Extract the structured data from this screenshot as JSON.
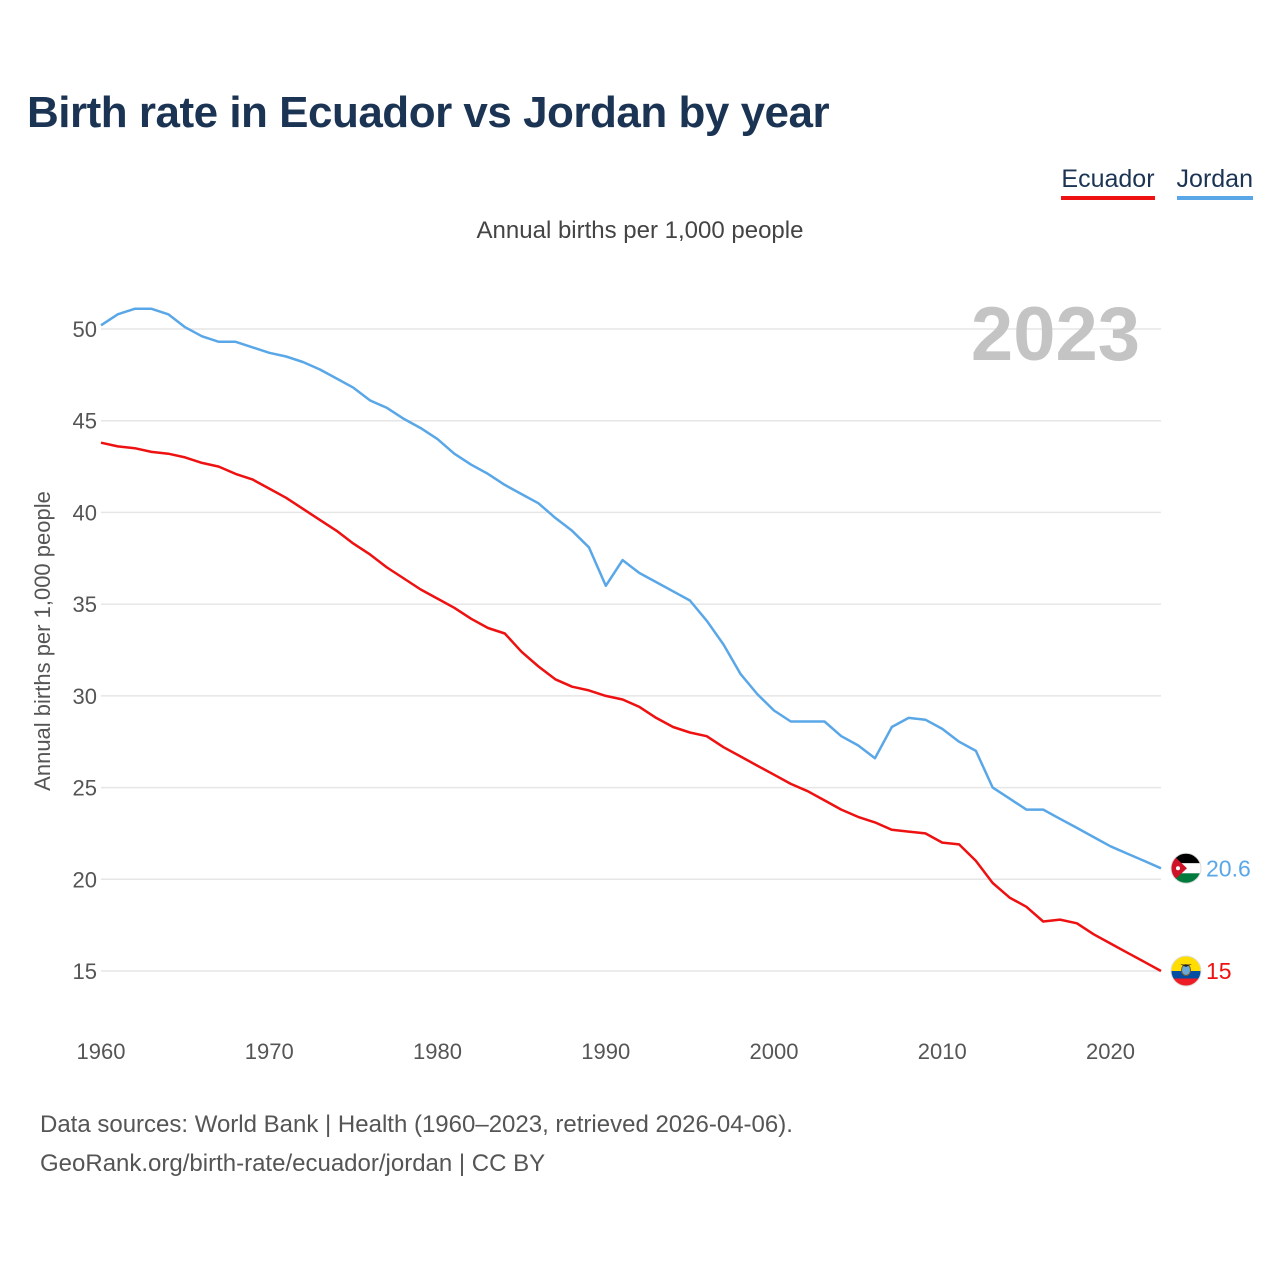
{
  "title": "Birth rate in Ecuador vs Jordan by year",
  "subtitle": "Annual births per 1,000 people",
  "legend": [
    {
      "label": "Ecuador",
      "color": "#ee1111"
    },
    {
      "label": "Jordan",
      "color": "#5aa7e8"
    }
  ],
  "source": {
    "line1": "Data sources: World Bank | Health (1960–2023, retrieved 2026-04-06).",
    "line2": "GeoRank.org/birth-rate/ecuador/jordan | CC BY"
  },
  "chart_data": {
    "type": "line",
    "title": "Birth rate in Ecuador vs Jordan by year",
    "ylabel": "Annual births per 1,000 people",
    "xlabel": "",
    "year_label": "2023",
    "xlim": [
      1960,
      2023
    ],
    "ylim": [
      15,
      50
    ],
    "x_ticks": [
      1960,
      1970,
      1980,
      1990,
      2000,
      2010,
      2020
    ],
    "y_ticks": [
      15,
      20,
      25,
      30,
      35,
      40,
      45,
      50
    ],
    "grid": true,
    "x": [
      1960,
      1961,
      1962,
      1963,
      1964,
      1965,
      1966,
      1967,
      1968,
      1969,
      1970,
      1971,
      1972,
      1973,
      1974,
      1975,
      1976,
      1977,
      1978,
      1979,
      1980,
      1981,
      1982,
      1983,
      1984,
      1985,
      1986,
      1987,
      1988,
      1989,
      1990,
      1991,
      1992,
      1993,
      1994,
      1995,
      1996,
      1997,
      1998,
      1999,
      2000,
      2001,
      2002,
      2003,
      2004,
      2005,
      2006,
      2007,
      2008,
      2009,
      2010,
      2011,
      2012,
      2013,
      2014,
      2015,
      2016,
      2017,
      2018,
      2019,
      2020,
      2021,
      2022,
      2023
    ],
    "series": [
      {
        "name": "Ecuador",
        "color": "#ee1111",
        "end_label": "15",
        "flag": "ecuador-flag-icon",
        "values": [
          43.8,
          43.6,
          43.5,
          43.3,
          43.2,
          43.0,
          42.7,
          42.5,
          42.1,
          41.8,
          41.3,
          40.8,
          40.2,
          39.6,
          39.0,
          38.3,
          37.7,
          37.0,
          36.4,
          35.8,
          35.3,
          34.8,
          34.2,
          33.7,
          33.4,
          32.4,
          31.6,
          30.9,
          30.5,
          30.3,
          30.0,
          29.8,
          29.4,
          28.8,
          28.3,
          28.0,
          27.8,
          27.2,
          26.7,
          26.2,
          25.7,
          25.2,
          24.8,
          24.3,
          23.8,
          23.4,
          23.1,
          22.7,
          22.6,
          22.5,
          22.0,
          21.9,
          21.0,
          19.8,
          19.0,
          18.5,
          17.7,
          17.8,
          17.6,
          17.0,
          16.5,
          16.0,
          15.5,
          15.0
        ]
      },
      {
        "name": "Jordan",
        "color": "#5aa7e8",
        "end_label": "20.6",
        "flag": "jordan-flag-icon",
        "values": [
          50.2,
          50.8,
          51.1,
          51.1,
          50.8,
          50.1,
          49.6,
          49.3,
          49.3,
          49.0,
          48.7,
          48.5,
          48.2,
          47.8,
          47.3,
          46.8,
          46.1,
          45.7,
          45.1,
          44.6,
          44.0,
          43.2,
          42.6,
          42.1,
          41.5,
          41.0,
          40.5,
          39.7,
          39.0,
          38.1,
          36.0,
          37.4,
          36.7,
          36.2,
          35.7,
          35.2,
          34.1,
          32.8,
          31.2,
          30.1,
          29.2,
          28.6,
          28.6,
          28.6,
          27.8,
          27.3,
          26.6,
          28.3,
          28.8,
          28.7,
          28.2,
          27.5,
          27.0,
          25.0,
          24.4,
          23.8,
          23.8,
          23.3,
          22.8,
          22.3,
          21.8,
          21.4,
          21.0,
          20.6
        ]
      }
    ]
  }
}
